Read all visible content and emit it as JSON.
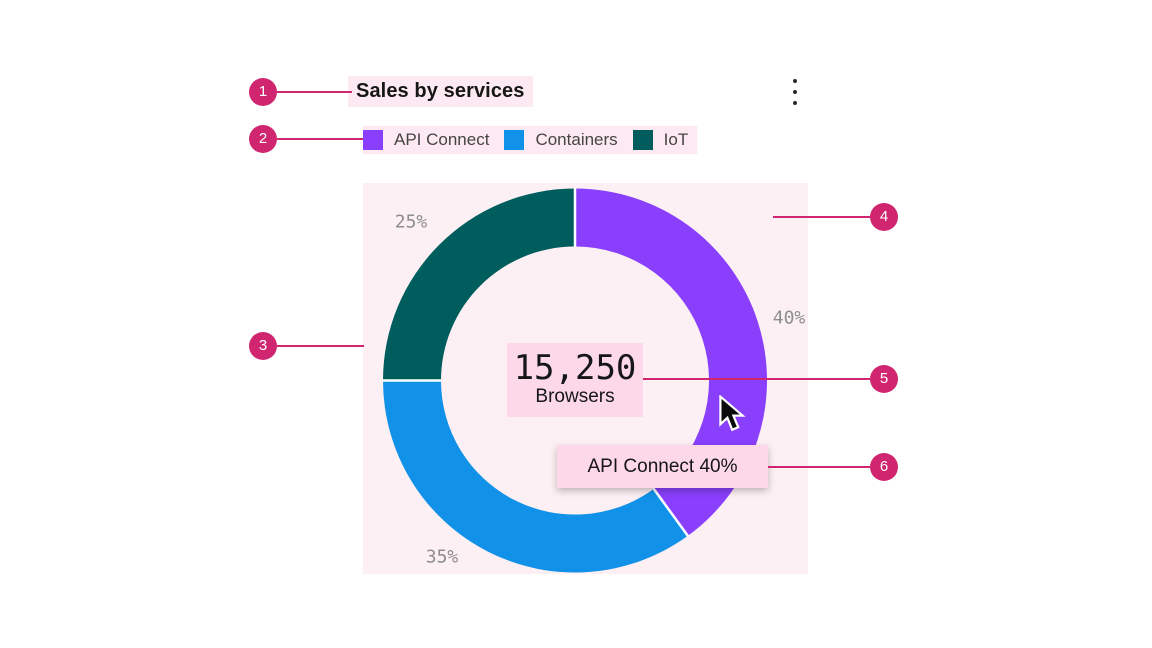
{
  "card": {
    "title": "Sales by services"
  },
  "overflow_menu": {
    "icon": "vertical-dots"
  },
  "legend": {
    "items": [
      {
        "label": "API Connect",
        "color": "#8a3ffc"
      },
      {
        "label": "Containers",
        "color": "#1192e8"
      },
      {
        "label": "IoT",
        "color": "#005d5d"
      }
    ]
  },
  "chart_data": {
    "type": "pie",
    "subtype": "donut",
    "title": "Sales by services",
    "slices": [
      {
        "label": "API Connect",
        "value": 40,
        "pct_label": "40%",
        "color": "#8a3ffc"
      },
      {
        "label": "Containers",
        "value": 35,
        "pct_label": "35%",
        "color": "#1192e8"
      },
      {
        "label": "IoT",
        "value": 25,
        "pct_label": "25%",
        "color": "#005d5d"
      }
    ],
    "center": {
      "value": "15,250",
      "label": "Browsers"
    },
    "start_angle": "12-oclock",
    "direction": "clockwise",
    "legend_position": "top-left"
  },
  "tooltip": {
    "text": "API Connect 40%"
  },
  "annotations": {
    "badge_color": "#d02670",
    "badges": [
      "1",
      "2",
      "3",
      "4",
      "5",
      "6"
    ]
  },
  "highlight_colors": {
    "strong_pink": "#fcd8e8",
    "light_pink_header": "#fde9f1",
    "light_pink_area": "#fdf0f4"
  }
}
